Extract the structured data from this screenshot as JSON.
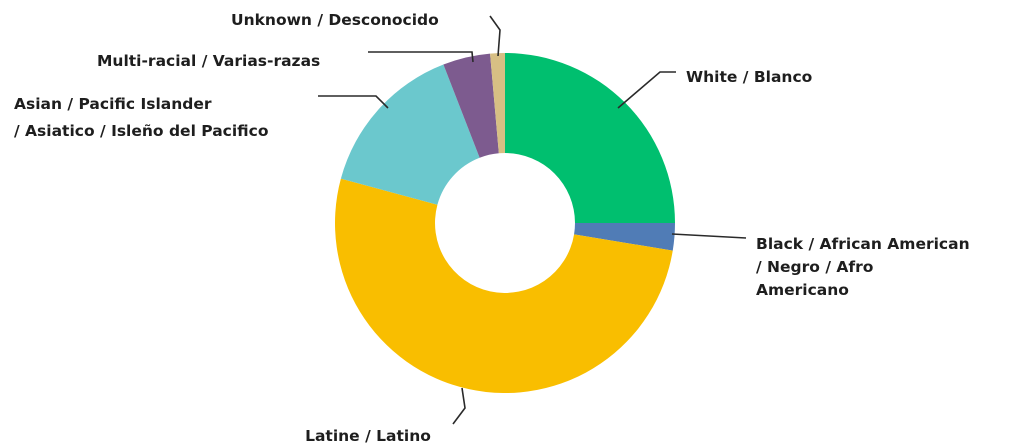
{
  "chart_data": {
    "type": "pie",
    "donut": true,
    "title": "",
    "legend": "none",
    "slices": [
      {
        "id": "white",
        "lines": [
          "White / Blanco"
        ],
        "value": 25.0,
        "color": "#00bf6f"
      },
      {
        "id": "black",
        "lines": [
          "Black / African American",
          "/ Negro / Afro",
          "Americano"
        ],
        "value": 2.6,
        "color": "#507cb6"
      },
      {
        "id": "latine",
        "lines": [
          "Latine / Latino"
        ],
        "value": 51.6,
        "color": "#f9be00"
      },
      {
        "id": "asian",
        "lines": [
          "Asian / Pacific Islander",
          "/ Asiatico / Isleño del Pacifico"
        ],
        "value": 14.9,
        "color": "#6bc8cd"
      },
      {
        "id": "multiracial",
        "lines": [
          "Multi-racial / Varias-razas"
        ],
        "value": 4.5,
        "color": "#7d5b8f"
      },
      {
        "id": "unknown",
        "lines": [
          "Unknown / Desconocido"
        ],
        "value": 1.4,
        "color": "#d7bf84"
      }
    ]
  }
}
